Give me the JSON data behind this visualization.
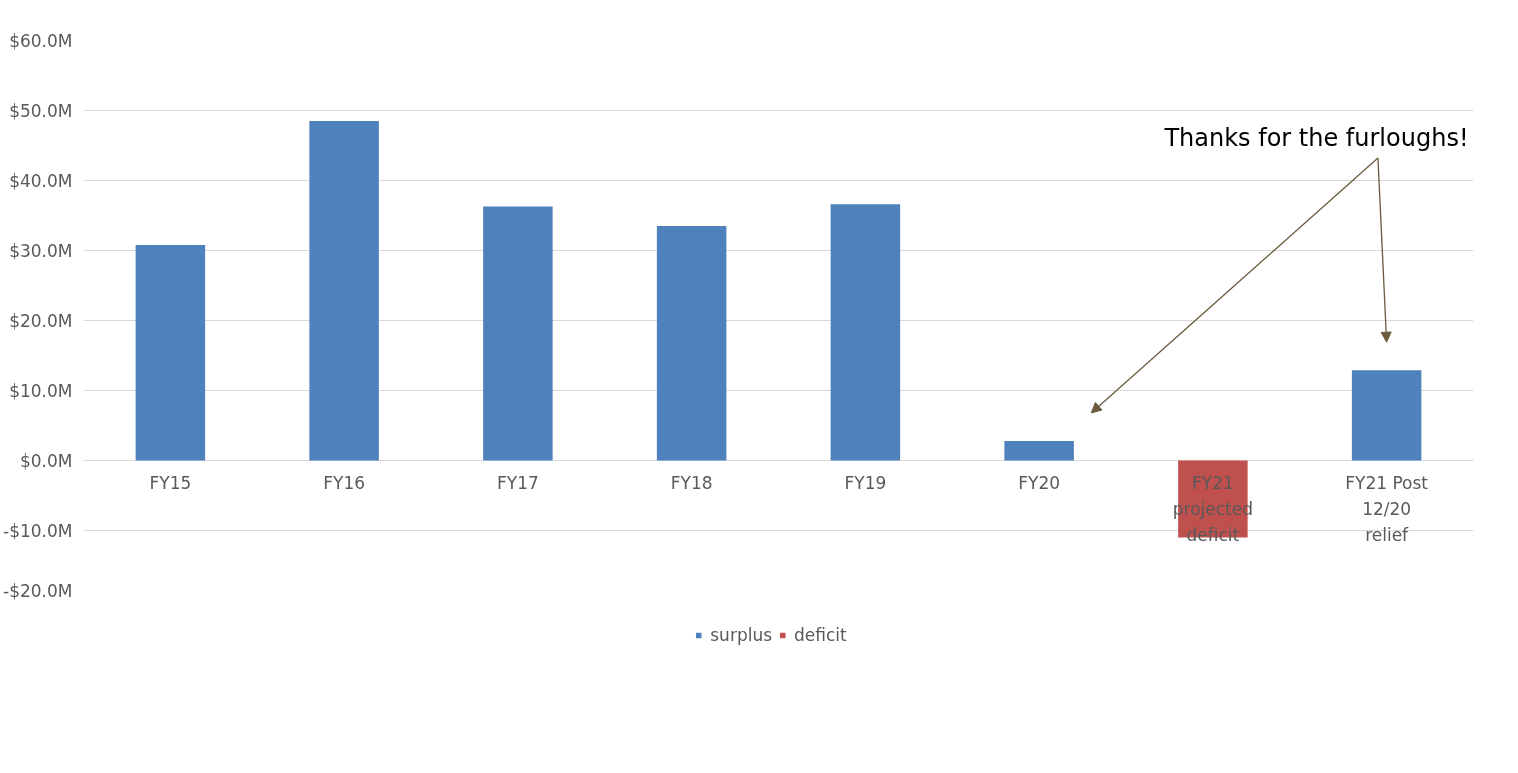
{
  "chart_data": {
    "type": "bar",
    "categories": [
      "FY15",
      "FY16",
      "FY17",
      "FY18",
      "FY19",
      "FY20",
      "FY21 projected deficit",
      "FY21 Post 12/20 relief"
    ],
    "series": [
      {
        "name": "surplus",
        "color": "#4f81bd",
        "values": [
          30.8,
          48.5,
          36.3,
          33.5,
          36.6,
          2.8,
          null,
          12.9
        ]
      },
      {
        "name": "deficit",
        "color": "#c0504d",
        "values": [
          null,
          null,
          null,
          null,
          null,
          null,
          -11.0,
          null
        ]
      }
    ],
    "ylim": [
      -20,
      60
    ],
    "yticks": [
      {
        "value": -20,
        "label": "-$20.0M"
      },
      {
        "value": -10,
        "label": "-$10.0M"
      },
      {
        "value": 0,
        "label": "$0.0M"
      },
      {
        "value": 10,
        "label": "$10.0M"
      },
      {
        "value": 20,
        "label": "$20.0M"
      },
      {
        "value": 30,
        "label": "$30.0M"
      },
      {
        "value": 40,
        "label": "$40.0M"
      },
      {
        "value": 50,
        "label": "$50.0M"
      },
      {
        "value": 60,
        "label": "$60.0M"
      }
    ],
    "grid": "y",
    "legend": "bottom",
    "annotations": [
      "Thanks for the furloughs!"
    ]
  }
}
